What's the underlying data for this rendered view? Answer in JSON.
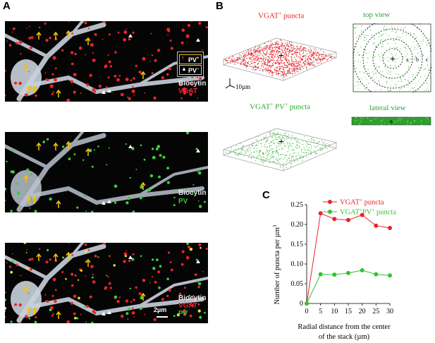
{
  "panel_a": {
    "letter": "A",
    "legend": {
      "pv_pos": "PV",
      "pv_pos_sup": "+",
      "pv_neg": "PV",
      "pv_neg_sup": "−"
    },
    "images": [
      {
        "label1": "Biocytin",
        "label2": "VGAT"
      },
      {
        "label1": "Biocytin",
        "label2": "PV"
      },
      {
        "label1": "Biocytin",
        "label2": "VGAT",
        "label3": "PV"
      }
    ],
    "scale_bar": "2µm"
  },
  "panel_b": {
    "letter": "B",
    "vgat_title": "VGAT",
    "vgat_title_sup": "+",
    "vgat_title_rest": " puncta",
    "vgatpv_title": "VGAT",
    "vgatpv_title_sup1": "+",
    "vgatpv_title_mid": " PV",
    "vgatpv_title_sup2": "+",
    "vgatpv_title_rest": " puncta",
    "top_view": "top view",
    "lateral_view": "lateral view",
    "ring_labels": [
      "a",
      "b",
      "c"
    ],
    "scale_3d": "10µm"
  },
  "panel_c": {
    "letter": "C",
    "colors": {
      "vgat": "#e8242a",
      "vgatpv": "#33c233"
    }
  },
  "chart_data": {
    "type": "line",
    "xlabel": "Radial distance from the center of the stack (µm)",
    "xlabel_line1": "Radial distance from the center",
    "xlabel_line2": "of the stack (µm)",
    "ylabel": "Number of puncta per µm",
    "ylabel_sup": "3",
    "x": [
      0,
      5,
      10,
      15,
      20,
      25,
      30
    ],
    "xlim": [
      0,
      30
    ],
    "ylim": [
      0,
      0.25
    ],
    "xticks": [
      "0",
      "5",
      "10",
      "15",
      "20",
      "25",
      "30"
    ],
    "yticks": [
      "0",
      "0.05",
      "0.10",
      "0.15",
      "0.20",
      "0.25"
    ],
    "series": [
      {
        "name": "VGAT+ puncta",
        "name_main": "VGAT",
        "name_sup": "+",
        "name_rest": " puncta",
        "values": [
          0,
          0.228,
          0.214,
          0.211,
          0.224,
          0.197,
          0.191
        ]
      },
      {
        "name": "VGAT+PV+ puncta",
        "name_main": "VGAT",
        "name_sup": "+",
        "name_mid": "PV",
        "name_sup2": "+",
        "name_rest": " puncta",
        "values": [
          0,
          0.074,
          0.073,
          0.077,
          0.084,
          0.074,
          0.071
        ]
      }
    ],
    "legend_position": "top-right",
    "grid": false
  }
}
